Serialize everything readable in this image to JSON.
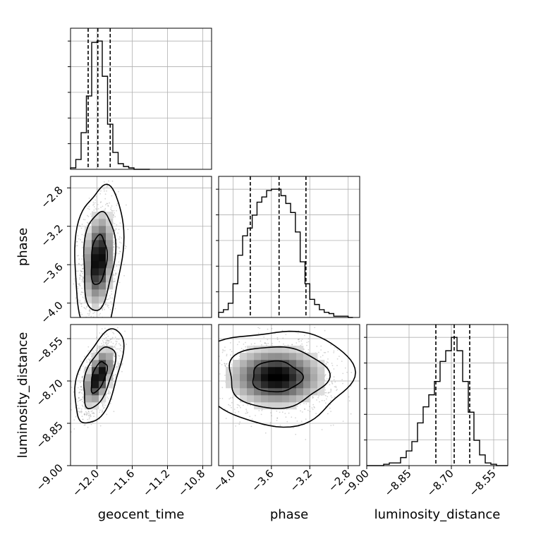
{
  "chart_data": {
    "type": "corner",
    "parameters": [
      "geocent_time",
      "phase",
      "luminosity_distance"
    ],
    "axis_labels": {
      "geocent_time": "geocent_time",
      "phase": "phase",
      "luminosity_distance": "luminosity_distance"
    },
    "ranges": {
      "geocent_time": [
        -12.3,
        -10.7
      ],
      "phase": [
        -4.15,
        -2.68
      ],
      "luminosity_distance": [
        -9.0,
        -8.5
      ]
    },
    "ticks": {
      "geocent_time": [
        -12.0,
        -11.6,
        -11.2,
        -10.8
      ],
      "phase": [
        -4.0,
        -3.6,
        -3.2,
        -2.8
      ],
      "luminosity_distance": [
        -9.0,
        -8.85,
        -8.7,
        -8.55
      ]
    },
    "tick_labels": {
      "geocent_time": [
        "−12.0",
        "−11.6",
        "−11.2",
        "−10.8"
      ],
      "phase": [
        "−4.0",
        "−3.6",
        "−3.2",
        "−2.8"
      ],
      "luminosity_distance": [
        "−9.00",
        "−8.85",
        "−8.70",
        "−8.55"
      ]
    },
    "grid": true,
    "quantiles": {
      "geocent_time": [
        -12.1,
        -11.99,
        -11.85
      ],
      "phase": [
        -3.82,
        -3.52,
        -3.24
      ],
      "luminosity_distance": [
        -8.755,
        -8.69,
        -8.635
      ]
    },
    "marginals": {
      "geocent_time": {
        "edges": [
          -12.3,
          -12.24,
          -12.18,
          -12.12,
          -12.06,
          -12.0,
          -11.94,
          -11.88,
          -11.82,
          -11.76,
          -11.7,
          -11.64,
          -11.58,
          -11.52,
          -11.46,
          -11.4
        ],
        "counts": [
          1,
          7,
          26,
          52,
          90,
          91,
          66,
          32,
          12,
          4,
          2,
          1,
          0,
          0,
          0
        ]
      },
      "phase": {
        "edges": [
          -4.15,
          -4.1,
          -4.05,
          -4.0,
          -3.95,
          -3.9,
          -3.85,
          -3.8,
          -3.75,
          -3.7,
          -3.65,
          -3.6,
          -3.55,
          -3.5,
          -3.45,
          -3.4,
          -3.35,
          -3.3,
          -3.25,
          -3.2,
          -3.15,
          -3.1,
          -3.05,
          -3.0,
          -2.95,
          -2.9,
          -2.85,
          -2.8,
          -2.75
        ],
        "counts": [
          4,
          6,
          11,
          26,
          48,
          63,
          69,
          79,
          89,
          93,
          98,
          99,
          99,
          94,
          88,
          81,
          66,
          43,
          26,
          14,
          10,
          6,
          4,
          3,
          1,
          1,
          1,
          0
        ]
      },
      "luminosity_distance": {
        "edges": [
          -9.0,
          -8.98,
          -8.96,
          -8.94,
          -8.92,
          -8.9,
          -8.88,
          -8.86,
          -8.84,
          -8.82,
          -8.8,
          -8.78,
          -8.76,
          -8.74,
          -8.72,
          -8.7,
          -8.68,
          -8.66,
          -8.64,
          -8.62,
          -8.6,
          -8.58,
          -8.56,
          -8.54,
          -8.52,
          -8.5
        ],
        "counts": [
          0,
          0,
          0,
          1,
          2,
          2,
          6,
          11,
          18,
          32,
          44,
          53,
          63,
          78,
          86,
          96,
          86,
          63,
          40,
          19,
          8,
          2,
          1,
          0,
          0
        ]
      }
    },
    "joint_2d": [
      {
        "x": "geocent_time",
        "y": "phase",
        "center": [
          -11.98,
          -3.55
        ],
        "sigma": [
          0.09,
          0.26
        ],
        "rho": 0.2
      },
      {
        "x": "geocent_time",
        "y": "luminosity_distance",
        "center": [
          -11.98,
          -8.685
        ],
        "sigma": [
          0.09,
          0.055
        ],
        "rho": 0.55
      },
      {
        "x": "phase",
        "y": "luminosity_distance",
        "center": [
          -3.55,
          -8.685
        ],
        "sigma": [
          0.26,
          0.055
        ],
        "rho": 0.0
      }
    ],
    "contour_levels": [
      0.39,
      0.86,
      0.99
    ],
    "n_scatter_points": 1600
  }
}
